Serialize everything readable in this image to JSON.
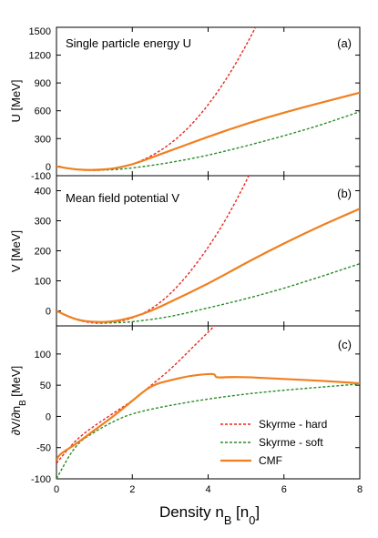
{
  "chart_data": [
    {
      "type": "line",
      "tag": "(a)",
      "title": "Single particle energy U",
      "ylabel": "U [MeV]",
      "ylim": [
        -100,
        1500
      ],
      "yticks": [
        -100,
        0,
        300,
        600,
        900,
        1200,
        1500
      ],
      "series": [
        {
          "name": "Skyrme - hard",
          "color": "#e8281e",
          "dash": "dotted",
          "x": [
            0,
            0.5,
            1.0,
            1.5,
            2.0,
            2.5,
            3.0,
            3.5,
            4.0,
            4.5,
            5.0,
            5.5
          ],
          "y": [
            0,
            -35,
            -45,
            -30,
            20,
            110,
            240,
            420,
            660,
            950,
            1300,
            1700
          ]
        },
        {
          "name": "Skyrme - soft",
          "color": "#2a8c2a",
          "dash": "dotted",
          "x": [
            0,
            0.5,
            1.0,
            1.5,
            2.0,
            3.0,
            4.0,
            5.0,
            6.0,
            7.0,
            8.0
          ],
          "y": [
            0,
            -32,
            -42,
            -36,
            -18,
            40,
            120,
            220,
            330,
            450,
            590
          ]
        },
        {
          "name": "CMF",
          "color": "#f07f1f",
          "dash": "solid",
          "x": [
            0,
            0.5,
            1.0,
            1.5,
            2.0,
            2.5,
            3.0,
            4.0,
            5.0,
            6.0,
            7.0,
            8.0
          ],
          "y": [
            0,
            -35,
            -40,
            -25,
            20,
            95,
            170,
            320,
            460,
            580,
            690,
            795
          ]
        }
      ]
    },
    {
      "type": "line",
      "tag": "(b)",
      "title": "Mean field potential V",
      "ylabel": "V [MeV]",
      "ylim": [
        -50,
        450
      ],
      "yticks": [
        0,
        100,
        200,
        300,
        400
      ],
      "series": [
        {
          "name": "Skyrme - hard",
          "color": "#e8281e",
          "dash": "dotted",
          "x": [
            0,
            0.5,
            1.0,
            1.5,
            2.0,
            2.5,
            3.0,
            3.5,
            4.0,
            4.5,
            5.0,
            5.3
          ],
          "y": [
            0,
            -30,
            -42,
            -40,
            -25,
            5,
            55,
            125,
            210,
            310,
            430,
            510
          ]
        },
        {
          "name": "Skyrme - soft",
          "color": "#2a8c2a",
          "dash": "dotted",
          "x": [
            0,
            0.5,
            1.0,
            1.5,
            2.0,
            3.0,
            4.0,
            5.0,
            6.0,
            7.0,
            8.0
          ],
          "y": [
            0,
            -28,
            -38,
            -40,
            -37,
            -20,
            10,
            40,
            75,
            115,
            157
          ]
        },
        {
          "name": "CMF",
          "color": "#f07f1f",
          "dash": "solid",
          "x": [
            0,
            0.5,
            1.0,
            1.5,
            2.0,
            2.5,
            3.0,
            4.0,
            5.0,
            6.0,
            7.0,
            8.0
          ],
          "y": [
            0,
            -30,
            -38,
            -36,
            -22,
            0,
            30,
            90,
            160,
            225,
            285,
            340
          ]
        }
      ]
    },
    {
      "type": "line",
      "tag": "(c)",
      "title": "",
      "ylabel": "∂V/∂n_B [MeV]",
      "xlabel": "Density n_B [n_0]",
      "xlim": [
        0,
        8
      ],
      "xticks": [
        0,
        2,
        4,
        6,
        8
      ],
      "ylim": [
        -100,
        145
      ],
      "yticks": [
        -100,
        -50,
        0,
        50,
        100
      ],
      "legend": "bottom-right",
      "series": [
        {
          "name": "Skyrme - hard",
          "color": "#e8281e",
          "dash": "dotted",
          "x": [
            0,
            0.5,
            1.0,
            1.5,
            2.0,
            2.5,
            3.0,
            3.5,
            4.0,
            4.5
          ],
          "y": [
            -75,
            -38,
            -15,
            5,
            25,
            50,
            75,
            105,
            135,
            165
          ]
        },
        {
          "name": "Skyrme - soft",
          "color": "#2a8c2a",
          "dash": "dotted",
          "x": [
            0,
            0.5,
            1.0,
            1.5,
            2.0,
            3.0,
            4.0,
            5.0,
            6.0,
            7.0,
            8.0
          ],
          "y": [
            -100,
            -45,
            -25,
            -8,
            5,
            18,
            28,
            36,
            42,
            47,
            52
          ]
        },
        {
          "name": "CMF",
          "color": "#f07f1f",
          "dash": "solid",
          "x": [
            0,
            0.05,
            0.5,
            1.0,
            1.5,
            2.0,
            2.5,
            3.0,
            3.5,
            4.0,
            4.18,
            4.2,
            4.5,
            5.0,
            6.0,
            7.0,
            8.0
          ],
          "y": [
            -72,
            -62,
            -45,
            -22,
            0,
            25,
            50,
            58,
            65,
            68,
            68,
            62,
            63,
            63,
            60,
            57,
            53
          ]
        }
      ]
    }
  ]
}
